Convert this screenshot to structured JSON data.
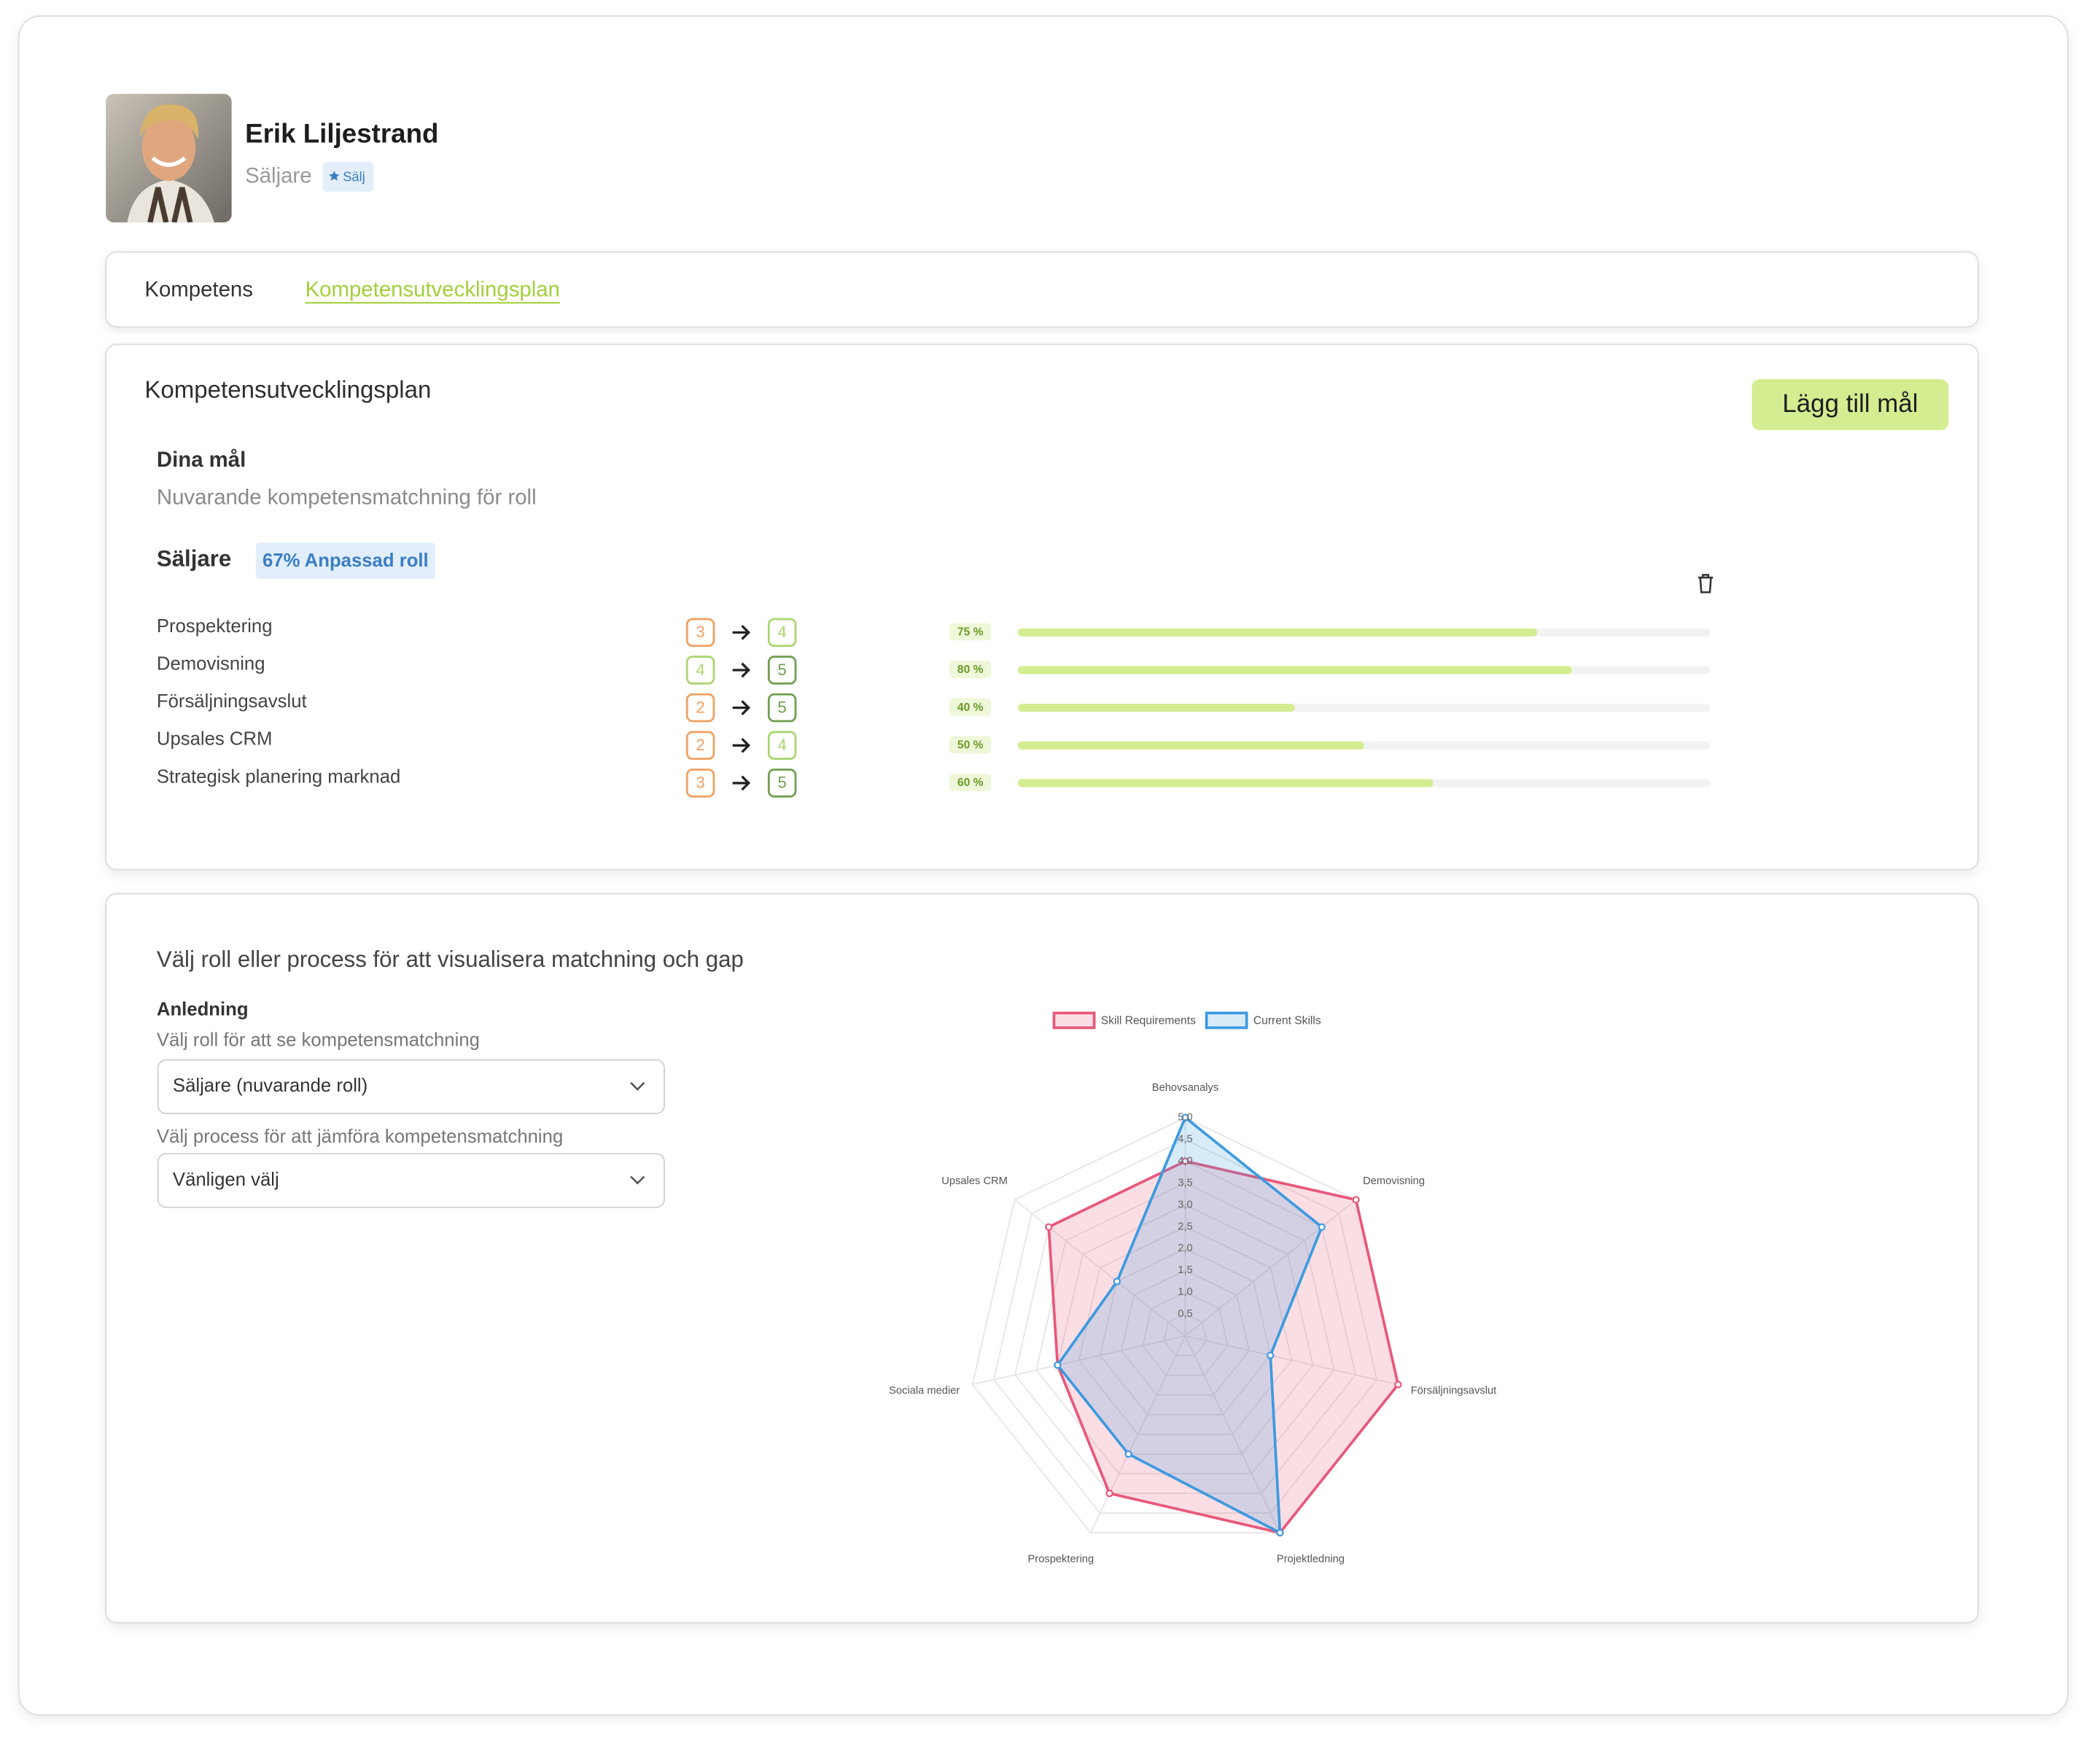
{
  "profile": {
    "name": "Erik Liljestrand",
    "role": "Säljare",
    "badge": "Sälj"
  },
  "tabs": {
    "items": [
      "Kompetens",
      "Kompetensutvecklingsplan"
    ],
    "active": 1
  },
  "plan": {
    "title": "Kompetensutvecklingsplan",
    "button": "Lägg till mål",
    "goals_title": "Dina mål",
    "goals_subtitle": "Nuvarande kompetensmatchning för roll",
    "role": "Säljare",
    "role_badge": "67% Anpassad roll",
    "skills": [
      {
        "name": "Prospektering",
        "current": 3,
        "target": 4,
        "progress": 75,
        "progress_label": "75 %"
      },
      {
        "name": "Demovisning",
        "current": 4,
        "target": 5,
        "progress": 80,
        "progress_label": "80 %"
      },
      {
        "name": "Försäljningsavslut",
        "current": 2,
        "target": 5,
        "progress": 40,
        "progress_label": "40 %"
      },
      {
        "name": "Upsales CRM",
        "current": 2,
        "target": 4,
        "progress": 50,
        "progress_label": "50 %"
      },
      {
        "name": "Strategisk planering marknad",
        "current": 3,
        "target": 5,
        "progress": 60,
        "progress_label": "60 %"
      }
    ]
  },
  "visualize": {
    "title": "Välj roll eller process för att visualisera matchning och gap",
    "field_label": "Anledning",
    "select1_label": "Välj roll för att se kompetensmatchning",
    "select1_value": "Säljare (nuvarande roll)",
    "select2_label": "Välj process för att jämföra kompetensmatchning",
    "select2_value": "Vänligen välj"
  },
  "chart_data": {
    "type": "radar",
    "categories": [
      "Behovsanalys",
      "Demovisning",
      "Försäljningsavslut",
      "Projektledning",
      "Prospektering",
      "Sociala medier",
      "Upsales CRM"
    ],
    "series": [
      {
        "name": "Skill Requirements",
        "color": "#e8587a",
        "values": [
          4,
          5,
          5,
          5,
          4,
          3,
          4
        ]
      },
      {
        "name": "Current Skills",
        "color": "#3d9ae0",
        "values": [
          5,
          4,
          2,
          5,
          3,
          3,
          2
        ]
      }
    ],
    "ylim": [
      0,
      5
    ],
    "yticks": [
      {
        "value": 0.5,
        "label": "0,5"
      },
      {
        "value": 1,
        "label": "1,0"
      },
      {
        "value": 1.5,
        "label": "1,5"
      },
      {
        "value": 2,
        "label": "2,0"
      },
      {
        "value": 2.5,
        "label": "2,5"
      },
      {
        "value": 3,
        "label": "3,0"
      },
      {
        "value": 3.5,
        "label": "3,5"
      },
      {
        "value": 4,
        "label": "4,0"
      },
      {
        "value": 4.5,
        "label": "4,5"
      },
      {
        "value": 5,
        "label": "5,0"
      }
    ],
    "legend": "top"
  }
}
